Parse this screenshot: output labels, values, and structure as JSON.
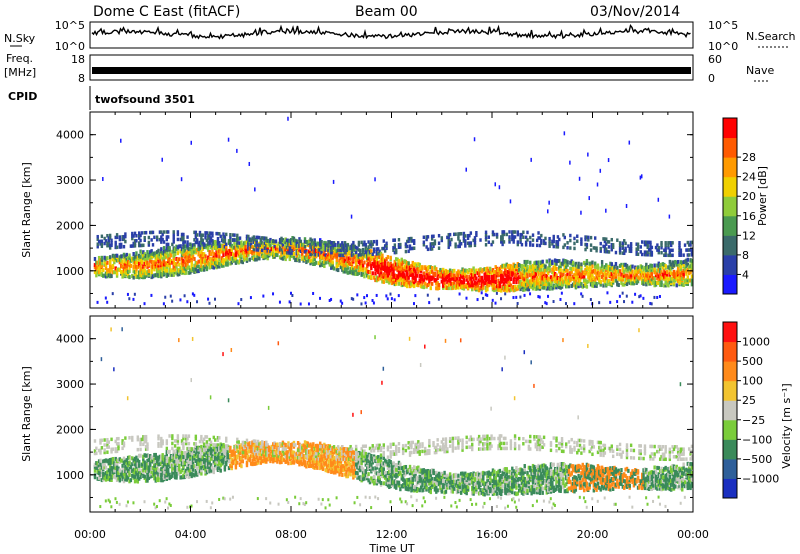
{
  "header": {
    "station": "Dome C East (fitACF)",
    "beam": "Beam 00",
    "date": "03/Nov/2014"
  },
  "left_labels": {
    "nsky": "N.Sky",
    "freq_line1": "Freq.",
    "freq_line2": "[MHz]",
    "cpid": "CPID"
  },
  "right_labels": {
    "nsearch": "N.Search",
    "nave": "Nave"
  },
  "noise_panel": {
    "left_ticks": [
      "10^5",
      "10^0"
    ],
    "right_ticks": [
      "10^5",
      "10^0"
    ]
  },
  "freq_panel": {
    "left_ticks": [
      "18",
      "8"
    ],
    "right_ticks": [
      "60",
      "0"
    ]
  },
  "cpid_panel": {
    "label": "twofsound 3501"
  },
  "chart_data": [
    {
      "type": "heatmap",
      "title": "",
      "xlabel": "",
      "ylabel": "Slant Range [km]",
      "xlim": [
        "00:00",
        "24:00"
      ],
      "ylim": [
        180,
        4500
      ],
      "y_ticks": [
        "1000",
        "2000",
        "3000",
        "4000"
      ],
      "colorbar": {
        "label": "Power [dB]",
        "ticks": [
          "4",
          "8",
          "12",
          "16",
          "20",
          "24",
          "28"
        ],
        "colors": [
          "#1a1aff",
          "#2a3fa8",
          "#3a6a6a",
          "#4a9a50",
          "#8fcc3a",
          "#f0d000",
          "#ff9a00",
          "#ff5a00",
          "#ff0000"
        ]
      }
    },
    {
      "type": "heatmap",
      "title": "",
      "xlabel": "Time UT",
      "ylabel": "Slant Range [km]",
      "xlim": [
        "00:00",
        "24:00"
      ],
      "ylim": [
        180,
        4500
      ],
      "x_ticks": [
        "00:00",
        "04:00",
        "08:00",
        "12:00",
        "16:00",
        "20:00",
        "00:00"
      ],
      "y_ticks": [
        "1000",
        "2000",
        "3000",
        "4000"
      ],
      "colorbar": {
        "label": "Velocity [m s⁻¹]",
        "ticks": [
          "1000",
          "500",
          "100",
          "25",
          "−25",
          "−100",
          "−500",
          "−1000"
        ],
        "colors": [
          "#1a2fc0",
          "#2e5f9a",
          "#3a8a5a",
          "#7acc3a",
          "#c8c8c0",
          "#f2c430",
          "#ff8a1a",
          "#ff5a10",
          "#ff1010"
        ]
      }
    }
  ]
}
